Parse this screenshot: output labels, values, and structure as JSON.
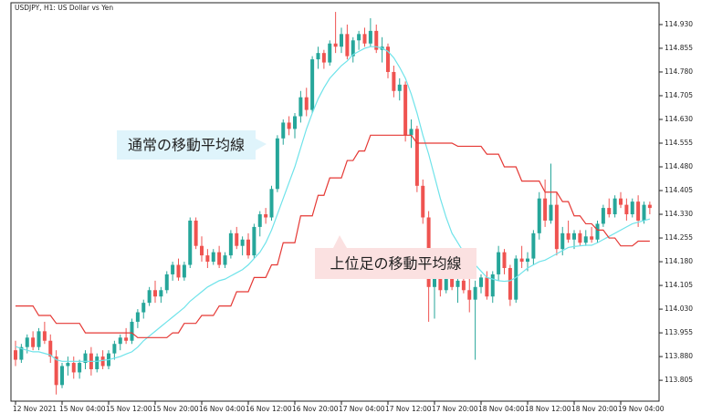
{
  "chart_data": {
    "type": "candlestick",
    "title": "USDJPY, H1:  US Dollar vs Yen",
    "categories": [
      "12 Nov 2021",
      null,
      null,
      null,
      null,
      null,
      null,
      null,
      "15 Nov 04:00",
      null,
      null,
      null,
      null,
      null,
      null,
      null,
      "15 Nov 12:00",
      null,
      null,
      null,
      null,
      null,
      null,
      null,
      "15 Nov 20:00",
      null,
      null,
      null,
      null,
      null,
      null,
      null,
      "16 Nov 04:00",
      null,
      null,
      null,
      null,
      null,
      null,
      null,
      "16 Nov 12:00",
      null,
      null,
      null,
      null,
      null,
      null,
      null,
      "16 Nov 20:00",
      null,
      null,
      null,
      null,
      null,
      null,
      null,
      "17 Nov 04:00",
      null,
      null,
      null,
      null,
      null,
      null,
      null,
      "17 Nov 12:00",
      null,
      null,
      null,
      null,
      null,
      null,
      null,
      "17 Nov 20:00",
      null,
      null,
      null,
      null,
      null,
      null,
      null,
      "18 Nov 04:00",
      null,
      null,
      null,
      null,
      null,
      null,
      null,
      "18 Nov 12:00",
      null,
      null,
      null,
      null,
      null,
      null,
      null,
      "18 Nov 20:00",
      null,
      null,
      null,
      null,
      null,
      null,
      null,
      "19 Nov 04:00",
      null,
      null,
      null,
      null,
      null
    ],
    "open": [
      113.9,
      113.87,
      113.91,
      113.94,
      113.91,
      113.96,
      113.93,
      113.88,
      113.79,
      113.85,
      113.86,
      113.83,
      113.86,
      113.89,
      113.84,
      113.88,
      113.85,
      113.89,
      113.92,
      113.94,
      113.93,
      113.99,
      114.02,
      114.05,
      114.09,
      114.07,
      114.09,
      114.14,
      114.17,
      114.13,
      114.17,
      114.31,
      114.23,
      114.2,
      114.18,
      114.21,
      114.17,
      114.2,
      114.27,
      114.23,
      114.25,
      114.2,
      114.29,
      114.33,
      114.32,
      114.41,
      114.57,
      114.62,
      114.6,
      114.64,
      114.7,
      114.66,
      114.82,
      114.84,
      114.81,
      114.87,
      114.86,
      114.9,
      114.83,
      114.88,
      114.9,
      114.87,
      114.91,
      114.85,
      114.86,
      114.78,
      114.72,
      114.74,
      114.58,
      114.6,
      114.42,
      114.32,
      114.1,
      114.13,
      114.09,
      114.13,
      114.1,
      114.12,
      114.09,
      114.06,
      114.1,
      114.13,
      114.07,
      114.14,
      114.21,
      114.16,
      114.06,
      114.19,
      114.18,
      114.19,
      114.27,
      114.38,
      114.31,
      114.36,
      114.22,
      114.27,
      114.25,
      114.27,
      114.24,
      114.26,
      114.25,
      114.3,
      114.35,
      114.33,
      114.38,
      114.36,
      114.33,
      114.37,
      114.31,
      114.36
    ],
    "high": [
      113.93,
      113.92,
      113.95,
      113.96,
      113.97,
      113.99,
      113.95,
      113.9,
      113.86,
      113.88,
      113.88,
      113.87,
      113.9,
      113.91,
      113.89,
      113.9,
      113.9,
      113.93,
      113.95,
      113.97,
      114.0,
      114.03,
      114.06,
      114.1,
      114.12,
      114.1,
      114.15,
      114.18,
      114.19,
      114.18,
      114.32,
      114.32,
      114.26,
      114.22,
      114.22,
      114.23,
      114.21,
      114.28,
      114.29,
      114.26,
      114.27,
      114.3,
      114.34,
      114.35,
      114.42,
      114.58,
      114.63,
      114.64,
      114.65,
      114.72,
      114.73,
      114.83,
      114.86,
      114.85,
      114.88,
      114.97,
      114.92,
      114.93,
      114.89,
      114.91,
      114.92,
      114.95,
      114.93,
      114.89,
      114.87,
      114.8,
      114.76,
      114.75,
      114.63,
      114.61,
      114.44,
      114.34,
      114.15,
      114.16,
      114.14,
      114.16,
      114.15,
      114.14,
      114.13,
      114.12,
      114.14,
      114.15,
      114.15,
      114.23,
      114.22,
      114.17,
      114.2,
      114.23,
      114.21,
      114.28,
      114.4,
      114.44,
      114.49,
      114.4,
      114.29,
      114.31,
      114.28,
      114.28,
      114.28,
      114.29,
      114.31,
      114.36,
      114.38,
      114.39,
      114.4,
      114.38,
      114.38,
      114.39,
      114.37,
      114.37
    ],
    "low": [
      113.85,
      113.86,
      113.89,
      113.9,
      113.9,
      113.92,
      113.86,
      113.76,
      113.78,
      113.82,
      113.81,
      113.81,
      113.84,
      113.82,
      113.83,
      113.84,
      113.84,
      113.87,
      113.9,
      113.92,
      113.92,
      113.97,
      114.0,
      114.04,
      114.05,
      114.05,
      114.08,
      114.12,
      114.12,
      114.12,
      114.16,
      114.22,
      114.18,
      114.16,
      114.17,
      114.16,
      114.16,
      114.19,
      114.22,
      114.2,
      114.19,
      114.19,
      114.26,
      114.3,
      114.31,
      114.4,
      114.55,
      114.58,
      114.57,
      114.62,
      114.64,
      114.65,
      114.79,
      114.79,
      114.8,
      114.84,
      114.84,
      114.82,
      114.81,
      114.85,
      114.86,
      114.86,
      114.84,
      114.81,
      114.76,
      114.7,
      114.69,
      114.56,
      114.54,
      114.4,
      114.3,
      113.99,
      114.0,
      114.07,
      114.08,
      114.09,
      114.05,
      114.08,
      114.02,
      113.87,
      114.08,
      114.06,
      114.05,
      114.12,
      114.14,
      114.04,
      114.05,
      114.16,
      114.15,
      114.17,
      114.25,
      114.29,
      114.3,
      114.2,
      114.2,
      114.24,
      114.22,
      114.23,
      114.23,
      114.24,
      114.24,
      114.29,
      114.32,
      114.32,
      114.35,
      114.31,
      114.32,
      114.29,
      114.3,
      114.33
    ],
    "close": [
      113.87,
      113.91,
      113.94,
      113.91,
      113.96,
      113.93,
      113.88,
      113.79,
      113.85,
      113.86,
      113.83,
      113.86,
      113.89,
      113.84,
      113.88,
      113.85,
      113.89,
      113.92,
      113.94,
      113.93,
      113.99,
      114.02,
      114.05,
      114.09,
      114.07,
      114.09,
      114.14,
      114.17,
      114.13,
      114.17,
      114.31,
      114.23,
      114.2,
      114.18,
      114.21,
      114.17,
      114.2,
      114.27,
      114.23,
      114.25,
      114.2,
      114.29,
      114.33,
      114.32,
      114.41,
      114.57,
      114.62,
      114.6,
      114.64,
      114.7,
      114.66,
      114.82,
      114.84,
      114.81,
      114.87,
      114.86,
      114.9,
      114.83,
      114.88,
      114.9,
      114.87,
      114.91,
      114.85,
      114.86,
      114.78,
      114.72,
      114.74,
      114.58,
      114.6,
      114.42,
      114.32,
      114.1,
      114.13,
      114.09,
      114.13,
      114.1,
      114.12,
      114.09,
      114.06,
      114.1,
      114.13,
      114.07,
      114.14,
      114.21,
      114.16,
      114.06,
      114.19,
      114.18,
      114.19,
      114.27,
      114.38,
      114.31,
      114.36,
      114.22,
      114.27,
      114.25,
      114.27,
      114.24,
      114.26,
      114.25,
      114.3,
      114.35,
      114.33,
      114.38,
      114.36,
      114.33,
      114.37,
      114.31,
      114.36,
      114.35
    ],
    "up_color": "#26a69a",
    "down_color": "#ef5350",
    "lines": [
      {
        "color": "#6fe3ea",
        "values": [
          113.912,
          113.905,
          113.9,
          113.895,
          113.895,
          113.89,
          113.885,
          113.87,
          113.865,
          113.865,
          113.865,
          113.865,
          113.865,
          113.865,
          113.865,
          113.868,
          113.87,
          113.875,
          113.88,
          113.888,
          113.895,
          113.91,
          113.93,
          113.945,
          113.96,
          113.975,
          113.99,
          114.005,
          114.02,
          114.035,
          114.055,
          114.07,
          114.085,
          114.1,
          114.11,
          114.12,
          114.125,
          114.135,
          114.145,
          114.155,
          114.17,
          114.19,
          114.21,
          114.24,
          114.28,
          114.33,
          114.38,
          114.43,
          114.48,
          114.54,
          114.6,
          114.65,
          114.695,
          114.73,
          114.76,
          114.78,
          114.8,
          114.815,
          114.835,
          114.845,
          114.855,
          114.86,
          114.86,
          114.855,
          114.845,
          114.825,
          114.795,
          114.76,
          114.71,
          114.65,
          114.58,
          114.52,
          114.45,
          114.38,
          114.32,
          114.27,
          114.24,
          114.21,
          114.19,
          114.17,
          114.15,
          114.13,
          114.125,
          114.12,
          114.118,
          114.12,
          114.13,
          114.145,
          114.16,
          114.17,
          114.18,
          114.185,
          114.195,
          114.205,
          114.215,
          114.225,
          114.228,
          114.23,
          114.232,
          114.232,
          114.24,
          114.25,
          114.26,
          114.27,
          114.28,
          114.29,
          114.3,
          114.305,
          114.31,
          114.315
        ]
      },
      {
        "color": "#e53935",
        "values": [
          114.04,
          114.04,
          114.04,
          114.04,
          114.01,
          114.01,
          114.01,
          113.985,
          113.985,
          113.985,
          113.985,
          113.985,
          113.955,
          113.955,
          113.955,
          113.955,
          113.955,
          113.955,
          113.955,
          113.955,
          113.955,
          113.94,
          113.94,
          113.94,
          113.94,
          113.94,
          113.94,
          113.955,
          113.955,
          113.985,
          113.985,
          113.985,
          114.01,
          114.01,
          114.01,
          114.04,
          114.04,
          114.04,
          114.085,
          114.085,
          114.085,
          114.13,
          114.13,
          114.13,
          114.17,
          114.17,
          114.24,
          114.24,
          114.24,
          114.325,
          114.325,
          114.325,
          114.39,
          114.39,
          114.445,
          114.445,
          114.445,
          114.5,
          114.5,
          114.53,
          114.53,
          114.58,
          114.58,
          114.58,
          114.58,
          114.58,
          114.58,
          114.58,
          114.58,
          114.555,
          114.555,
          114.555,
          114.555,
          114.555,
          114.555,
          114.555,
          114.545,
          114.545,
          114.545,
          114.545,
          114.545,
          114.52,
          114.52,
          114.52,
          114.48,
          114.48,
          114.48,
          114.435,
          114.435,
          114.435,
          114.435,
          114.4,
          114.4,
          114.4,
          114.37,
          114.37,
          114.325,
          114.325,
          114.3,
          114.3,
          114.28,
          114.28,
          114.255,
          114.255,
          114.23,
          114.23,
          114.23,
          114.245,
          114.245,
          114.245
        ]
      }
    ],
    "ylim": [
      113.739,
      114.999
    ],
    "yticks": [
      113.805,
      {
        "value": 113.88,
        "label": "113.880"
      },
      113.955,
      {
        "value": 114.03,
        "label": "114.030"
      },
      114.105,
      {
        "value": 114.18,
        "label": "114.180"
      },
      114.255,
      {
        "value": 114.33,
        "label": "114.330"
      },
      114.405,
      {
        "value": 114.48,
        "label": "114.480"
      },
      114.555,
      {
        "value": 114.63,
        "label": "114.630"
      },
      114.705,
      {
        "value": 114.78,
        "label": "114.780"
      },
      114.855,
      {
        "value": 114.93,
        "label": "114.930"
      }
    ],
    "annotations": [
      {
        "text": "通常の移動平均線",
        "color": "#dff4fb"
      },
      {
        "text": "上位足の移動平均線",
        "color": "#fbe1e1"
      }
    ]
  }
}
